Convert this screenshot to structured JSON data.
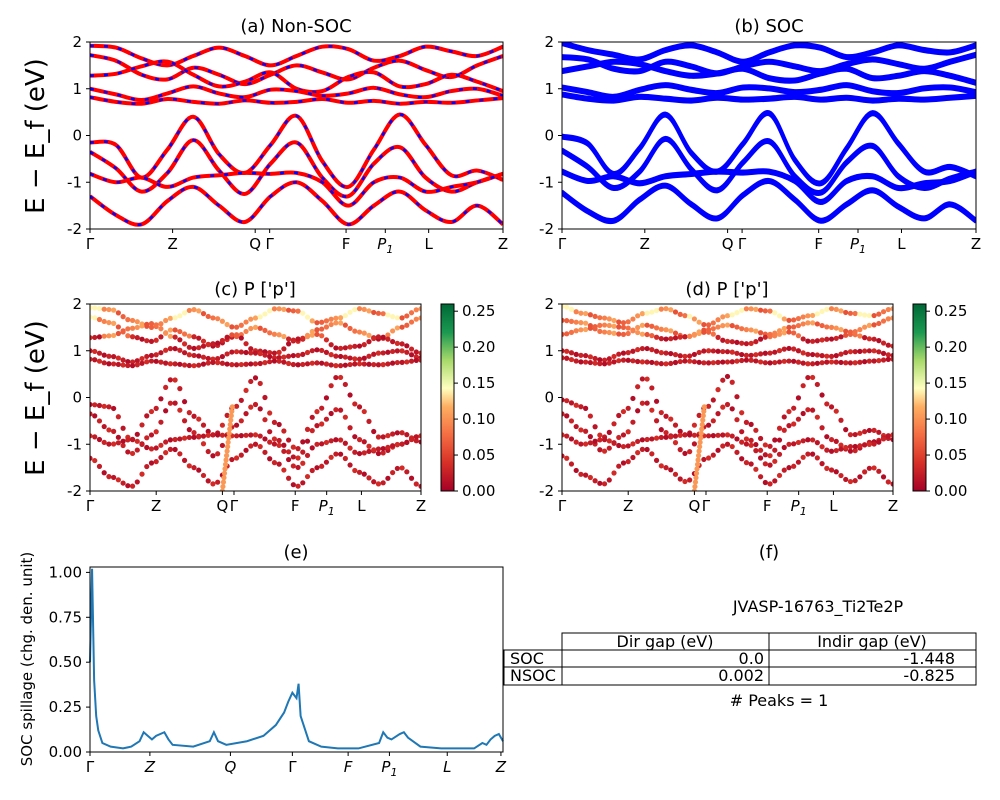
{
  "figure": {
    "material": "JVASP-16763_Ti2Te2P",
    "peaks": "# Peaks = 1"
  },
  "panels": [
    {
      "id": "a",
      "title": "(a) Non-SOC"
    },
    {
      "id": "b",
      "title": "(b) SOC"
    },
    {
      "id": "c",
      "title": "(c)  P ['p']"
    },
    {
      "id": "d",
      "title": "(d) P ['p']"
    },
    {
      "id": "e",
      "title": "(e)"
    },
    {
      "id": "f",
      "title": "(f)"
    }
  ],
  "ylabel_band": "E − E_f (eV)",
  "ylabel_spill": "SOC spillage (chg. den. unit)",
  "colors": {
    "nonsoc": "#ff0000",
    "nonsoc_dash": "#0000ff",
    "soc": "#0000ff",
    "spill": "#1f77b4"
  },
  "chart_data": [
    {
      "type": "line",
      "panel": "a",
      "xticks": [
        "Γ",
        "Z",
        "Q",
        "Γ",
        "F",
        "P_1",
        "L",
        "Z"
      ],
      "ylim": [
        -2,
        2
      ],
      "yticks": [
        -2,
        -1,
        0,
        1,
        2
      ],
      "bands": [
        [
          1.92,
          1.88,
          1.65,
          1.5,
          1.7,
          1.88,
          1.7,
          1.5,
          1.7,
          1.9,
          1.85,
          1.6,
          1.7,
          1.9,
          1.8,
          1.7,
          1.9
        ],
        [
          1.72,
          1.6,
          1.3,
          1.2,
          1.45,
          1.3,
          1.1,
          1.3,
          1.5,
          1.35,
          1.2,
          1.45,
          1.6,
          1.4,
          1.25,
          1.5,
          1.7
        ],
        [
          1.28,
          1.32,
          1.48,
          1.58,
          1.3,
          1.05,
          1.15,
          1.35,
          1.0,
          0.95,
          1.25,
          1.35,
          1.05,
          1.1,
          1.3,
          1.15,
          0.95
        ],
        [
          1.0,
          0.88,
          0.76,
          0.9,
          1.05,
          0.9,
          0.82,
          0.98,
          0.95,
          0.85,
          0.9,
          1.02,
          0.88,
          0.82,
          0.95,
          1.0,
          0.85
        ],
        [
          0.82,
          0.72,
          0.68,
          0.78,
          0.72,
          0.68,
          0.75,
          0.7,
          0.72,
          0.78,
          0.7,
          0.74,
          0.68,
          0.72,
          0.7,
          0.75,
          0.8
        ],
        [
          -0.15,
          -0.2,
          -0.9,
          -0.3,
          0.4,
          -0.4,
          -0.8,
          -0.2,
          0.42,
          -0.55,
          -1.1,
          -0.3,
          0.45,
          -0.2,
          -0.85,
          -0.75,
          -0.95
        ],
        [
          -0.35,
          -0.7,
          -1.2,
          -0.8,
          -0.1,
          -0.75,
          -1.25,
          -0.6,
          -0.15,
          -0.9,
          -1.3,
          -0.6,
          -0.25,
          -0.9,
          -1.2,
          -1.0,
          -0.82
        ],
        [
          -0.82,
          -1.0,
          -0.9,
          -1.1,
          -0.9,
          -0.85,
          -0.8,
          -0.82,
          -0.8,
          -1.0,
          -1.5,
          -1.0,
          -0.9,
          -1.2,
          -1.1,
          -1.0,
          -0.82
        ],
        [
          -1.3,
          -1.7,
          -1.9,
          -1.4,
          -1.1,
          -1.5,
          -1.85,
          -1.3,
          -1.0,
          -1.4,
          -1.9,
          -1.5,
          -1.2,
          -1.6,
          -1.85,
          -1.5,
          -1.9
        ]
      ]
    },
    {
      "type": "line",
      "panel": "b",
      "xticks": [
        "Γ",
        "Z",
        "Q",
        "Γ",
        "F",
        "P_1",
        "L",
        "Z"
      ],
      "ylim": [
        -2,
        2
      ],
      "yticks": [
        -2,
        -1,
        0,
        1,
        2
      ],
      "bands": [
        [
          1.95,
          1.8,
          1.7,
          1.6,
          1.8,
          1.9,
          1.75,
          1.55,
          1.75,
          1.9,
          1.85,
          1.65,
          1.75,
          1.9,
          1.8,
          1.75,
          1.9
        ],
        [
          1.65,
          1.6,
          1.4,
          1.35,
          1.55,
          1.45,
          1.3,
          1.45,
          1.55,
          1.45,
          1.35,
          1.5,
          1.6,
          1.5,
          1.4,
          1.55,
          1.7
        ],
        [
          1.35,
          1.45,
          1.55,
          1.5,
          1.35,
          1.25,
          1.3,
          1.4,
          1.2,
          1.15,
          1.3,
          1.4,
          1.2,
          1.25,
          1.35,
          1.25,
          1.1
        ],
        [
          1.0,
          0.9,
          0.8,
          0.95,
          1.05,
          0.95,
          0.88,
          1.0,
          0.98,
          0.9,
          0.95,
          1.05,
          0.92,
          0.88,
          0.98,
          1.0,
          0.9
        ],
        [
          0.85,
          0.76,
          0.72,
          0.8,
          0.76,
          0.72,
          0.78,
          0.74,
          0.76,
          0.8,
          0.74,
          0.78,
          0.72,
          0.76,
          0.74,
          0.78,
          0.82
        ],
        [
          -0.05,
          -0.2,
          -0.85,
          -0.3,
          0.42,
          -0.4,
          -0.8,
          -0.2,
          0.45,
          -0.55,
          -1.05,
          -0.3,
          0.45,
          -0.2,
          -0.8,
          -0.7,
          -0.9
        ],
        [
          -0.35,
          -0.7,
          -1.15,
          -0.8,
          -0.1,
          -0.75,
          -1.2,
          -0.6,
          -0.15,
          -0.9,
          -1.25,
          -0.6,
          -0.25,
          -0.9,
          -1.15,
          -0.95,
          -0.8
        ],
        [
          -0.8,
          -1.0,
          -0.9,
          -1.05,
          -0.9,
          -0.85,
          -0.8,
          -0.82,
          -0.8,
          -1.0,
          -1.45,
          -1.0,
          -0.9,
          -1.15,
          -1.05,
          -1.0,
          -0.8
        ],
        [
          -1.25,
          -1.65,
          -1.85,
          -1.4,
          -1.1,
          -1.5,
          -1.8,
          -1.3,
          -1.0,
          -1.4,
          -1.85,
          -1.5,
          -1.2,
          -1.55,
          -1.8,
          -1.5,
          -1.85
        ]
      ]
    },
    {
      "type": "scatter",
      "panel": "c",
      "xticks": [
        "Γ",
        "Z",
        "Q",
        "Γ",
        "F",
        "P_1",
        "L",
        "Z"
      ],
      "ylim": [
        -2,
        2
      ],
      "yticks": [
        -2,
        -1,
        0,
        1,
        2
      ],
      "colorbar": {
        "range": [
          0,
          0.26
        ],
        "ticks": [
          "0.00",
          "0.05",
          "0.10",
          "0.15",
          "0.20",
          "0.25"
        ]
      }
    },
    {
      "type": "scatter",
      "panel": "d",
      "xticks": [
        "Γ",
        "Z",
        "Q",
        "Γ",
        "F",
        "P_1",
        "L",
        "Z"
      ],
      "ylim": [
        -2,
        2
      ],
      "yticks": [
        -2,
        -1,
        0,
        1,
        2
      ],
      "colorbar": {
        "range": [
          0,
          0.26
        ],
        "ticks": [
          "0.00",
          "0.05",
          "0.10",
          "0.15",
          "0.20",
          "0.25"
        ]
      }
    },
    {
      "type": "line",
      "panel": "e",
      "xticks": [
        "Γ",
        "Z",
        "Q",
        "Γ",
        "F",
        "P_1",
        "L",
        "Z"
      ],
      "ylim": [
        0,
        1.03
      ],
      "yticks": [
        "0.00",
        "0.25",
        "0.50",
        "0.75",
        "1.00"
      ],
      "x": [
        0,
        0.005,
        0.01,
        0.015,
        0.02,
        0.03,
        0.05,
        0.08,
        0.1,
        0.12,
        0.13,
        0.14,
        0.15,
        0.16,
        0.18,
        0.19,
        0.2,
        0.25,
        0.29,
        0.3,
        0.31,
        0.33,
        0.38,
        0.42,
        0.45,
        0.47,
        0.48,
        0.49,
        0.5,
        0.505,
        0.51,
        0.53,
        0.56,
        0.6,
        0.62,
        0.65,
        0.7,
        0.71,
        0.72,
        0.73,
        0.75,
        0.76,
        0.77,
        0.8,
        0.85,
        0.9,
        0.93,
        0.95,
        0.96,
        0.97,
        0.98,
        0.99,
        1.0
      ],
      "y": [
        0.5,
        1.02,
        0.4,
        0.2,
        0.12,
        0.05,
        0.03,
        0.02,
        0.03,
        0.06,
        0.11,
        0.09,
        0.07,
        0.09,
        0.11,
        0.07,
        0.04,
        0.03,
        0.06,
        0.11,
        0.06,
        0.04,
        0.06,
        0.09,
        0.15,
        0.22,
        0.28,
        0.33,
        0.3,
        0.38,
        0.2,
        0.06,
        0.03,
        0.02,
        0.02,
        0.02,
        0.05,
        0.11,
        0.08,
        0.07,
        0.1,
        0.11,
        0.08,
        0.03,
        0.02,
        0.02,
        0.02,
        0.05,
        0.04,
        0.07,
        0.09,
        0.1,
        0.06
      ]
    },
    {
      "type": "table",
      "panel": "f",
      "columns": [
        "",
        "Dir gap (eV)",
        "Indir gap (eV)"
      ],
      "rows": [
        [
          "SOC",
          "0.0",
          "-1.448"
        ],
        [
          "NSOC",
          "0.002",
          "-0.825"
        ]
      ]
    }
  ]
}
